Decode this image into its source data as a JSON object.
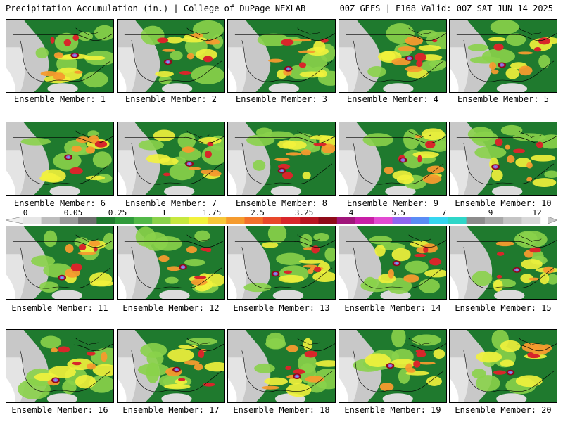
{
  "header": {
    "title_left": "Precipitation Accumulation (in.) | College of DuPage NEXLAB",
    "title_right": "00Z GEFS | F168 Valid: 00Z SAT JUN 14 2025"
  },
  "panels": [
    {
      "label": "Ensemble Member: 1"
    },
    {
      "label": "Ensemble Member: 2"
    },
    {
      "label": "Ensemble Member: 3"
    },
    {
      "label": "Ensemble Member: 4"
    },
    {
      "label": "Ensemble Member: 5"
    },
    {
      "label": "Ensemble Member: 6"
    },
    {
      "label": "Ensemble Member: 7"
    },
    {
      "label": "Ensemble Member: 8"
    },
    {
      "label": "Ensemble Member: 9"
    },
    {
      "label": "Ensemble Member: 10"
    },
    {
      "label": "Ensemble Member: 11"
    },
    {
      "label": "Ensemble Member: 12"
    },
    {
      "label": "Ensemble Member: 13"
    },
    {
      "label": "Ensemble Member: 14"
    },
    {
      "label": "Ensemble Member: 15"
    },
    {
      "label": "Ensemble Member: 16"
    },
    {
      "label": "Ensemble Member: 17"
    },
    {
      "label": "Ensemble Member: 18"
    },
    {
      "label": "Ensemble Member: 19"
    },
    {
      "label": "Ensemble Member: 20"
    }
  ],
  "colorbar": {
    "labels": [
      "0",
      "0.05",
      "0.25",
      "1",
      "1.75",
      "2.5",
      "3.25",
      "4",
      "5.5",
      "7",
      "9",
      "12"
    ],
    "colors": [
      "#e6e6e6",
      "#bdbdbd",
      "#9a9a9a",
      "#6e6e6e",
      "#1f7a2e",
      "#2f9a3a",
      "#52b848",
      "#8ad24a",
      "#c6e83e",
      "#f2f23c",
      "#f7c738",
      "#f59b2e",
      "#f2702a",
      "#e8482a",
      "#d8262a",
      "#b81420",
      "#8f0a18",
      "#a0157a",
      "#c81ea6",
      "#e24ad2",
      "#8f66f0",
      "#5a8cf5",
      "#35d6f0",
      "#2ed6c8",
      "#8c8c8c",
      "#a8a8a8",
      "#c4c4c4",
      "#d8d8d8"
    ],
    "map_colors": {
      "ocean_white": "#ffffff",
      "dry_gray": "#c8c8c8",
      "light": "#1f7a2e",
      "moderate": "#8ad24a",
      "yellow": "#f2f23c",
      "orange": "#f59b2e",
      "red": "#d8262a",
      "maroon": "#8f0a18",
      "purple": "#a05ad2",
      "cyan": "#5ab8f0"
    }
  }
}
